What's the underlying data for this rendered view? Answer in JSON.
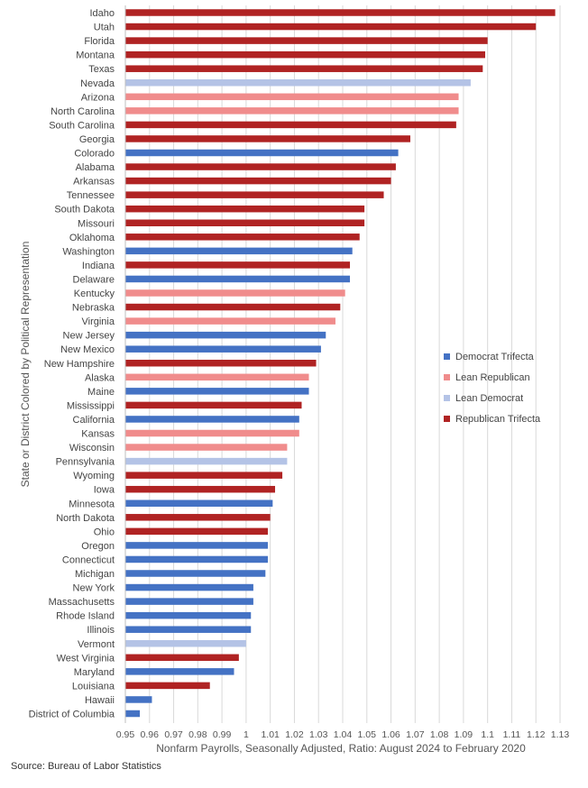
{
  "chart_data": {
    "type": "bar",
    "orientation": "horizontal",
    "title": "",
    "xlabel": "Nonfarm Payrolls, Seasonally Adjusted, Ratio: August 2024 to February 2020",
    "ylabel": "State or District Colored by Political Representation",
    "xlim": [
      0.95,
      1.13
    ],
    "xticks": [
      "0.95",
      "0.96",
      "0.97",
      "0.98",
      "0.99",
      "1",
      "1.01",
      "1.02",
      "1.03",
      "1.04",
      "1.05",
      "1.06",
      "1.07",
      "1.08",
      "1.09",
      "1.1",
      "1.11",
      "1.12",
      "1.13"
    ],
    "grid": true,
    "legend_position": "right",
    "legend": [
      {
        "name": "Democrat Trifecta",
        "color": "#4472C4"
      },
      {
        "name": "Lean Republican",
        "color": "#F08C8C"
      },
      {
        "name": "Lean Democrat",
        "color": "#B4C3E6"
      },
      {
        "name": "Republican Trifecta",
        "color": "#B02323"
      }
    ],
    "categories": [
      "Idaho",
      "Utah",
      "Florida",
      "Montana",
      "Texas",
      "Nevada",
      "Arizona",
      "North Carolina",
      "South Carolina",
      "Georgia",
      "Colorado",
      "Alabama",
      "Arkansas",
      "Tennessee",
      "South Dakota",
      "Missouri",
      "Oklahoma",
      "Washington",
      "Indiana",
      "Delaware",
      "Kentucky",
      "Nebraska",
      "Virginia",
      "New Jersey",
      "New Mexico",
      "New Hampshire",
      "Alaska",
      "Maine",
      "Mississippi",
      "California",
      "Kansas",
      "Wisconsin",
      "Pennsylvania",
      "Wyoming",
      "Iowa",
      "Minnesota",
      "North Dakota",
      "Ohio",
      "Oregon",
      "Connecticut",
      "Michigan",
      "New York",
      "Massachusetts",
      "Rhode Island",
      "Illinois",
      "Vermont",
      "West Virginia",
      "Maryland",
      "Louisiana",
      "Hawaii",
      "District of Columbia"
    ],
    "values": [
      1.128,
      1.12,
      1.1,
      1.099,
      1.098,
      1.093,
      1.088,
      1.088,
      1.087,
      1.068,
      1.063,
      1.062,
      1.06,
      1.057,
      1.049,
      1.049,
      1.047,
      1.044,
      1.043,
      1.043,
      1.041,
      1.039,
      1.037,
      1.033,
      1.031,
      1.029,
      1.026,
      1.026,
      1.023,
      1.022,
      1.022,
      1.017,
      1.017,
      1.015,
      1.012,
      1.011,
      1.01,
      1.009,
      1.009,
      1.009,
      1.008,
      1.003,
      1.003,
      1.002,
      1.002,
      1.0,
      0.997,
      0.995,
      0.985,
      0.961,
      0.956
    ],
    "groups": [
      "Republican Trifecta",
      "Republican Trifecta",
      "Republican Trifecta",
      "Republican Trifecta",
      "Republican Trifecta",
      "Lean Democrat",
      "Lean Republican",
      "Lean Republican",
      "Republican Trifecta",
      "Republican Trifecta",
      "Democrat Trifecta",
      "Republican Trifecta",
      "Republican Trifecta",
      "Republican Trifecta",
      "Republican Trifecta",
      "Republican Trifecta",
      "Republican Trifecta",
      "Democrat Trifecta",
      "Republican Trifecta",
      "Democrat Trifecta",
      "Lean Republican",
      "Republican Trifecta",
      "Lean Republican",
      "Democrat Trifecta",
      "Democrat Trifecta",
      "Republican Trifecta",
      "Lean Republican",
      "Democrat Trifecta",
      "Republican Trifecta",
      "Democrat Trifecta",
      "Lean Republican",
      "Lean Republican",
      "Lean Democrat",
      "Republican Trifecta",
      "Republican Trifecta",
      "Democrat Trifecta",
      "Republican Trifecta",
      "Republican Trifecta",
      "Democrat Trifecta",
      "Democrat Trifecta",
      "Democrat Trifecta",
      "Democrat Trifecta",
      "Democrat Trifecta",
      "Democrat Trifecta",
      "Democrat Trifecta",
      "Lean Democrat",
      "Republican Trifecta",
      "Democrat Trifecta",
      "Republican Trifecta",
      "Democrat Trifecta",
      "Democrat Trifecta"
    ]
  },
  "source": "Source: Bureau of Labor Statistics"
}
